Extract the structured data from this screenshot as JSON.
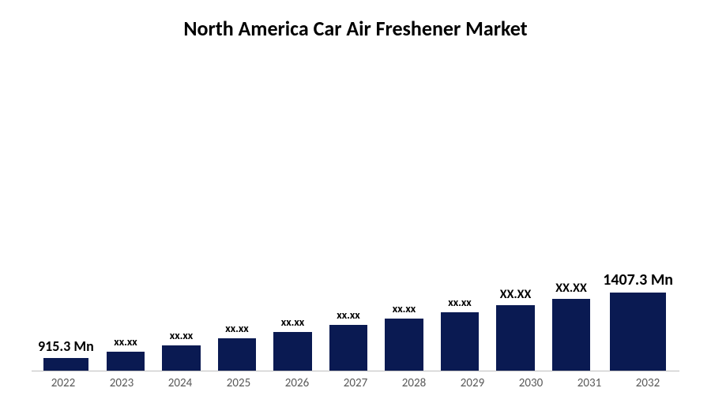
{
  "chart": {
    "type": "bar",
    "title": "North America Car Air Freshener Market",
    "title_fontsize": 26,
    "title_color": "#000000",
    "background_color": "#ffffff",
    "bar_color": "#0a1a52",
    "axis_line_color": "#bfbfbf",
    "bar_width_pct": 80,
    "categories": [
      "2022",
      "2023",
      "2024",
      "2025",
      "2026",
      "2027",
      "2028",
      "2029",
      "2030",
      "2031",
      "2032"
    ],
    "values": [
      915.3,
      960,
      1010,
      1060,
      1110,
      1160,
      1210,
      1260,
      1310,
      1360,
      1407.3
    ],
    "value_labels": [
      "915.3 Mn",
      "xx.xx",
      "xx.xx",
      "xx.xx",
      "xx.xx",
      "xx.xx",
      "xx.xx",
      "xx.xx",
      "XX.XX",
      "XX.XX",
      "1407.3 Mn"
    ],
    "label_fontsizes": [
      18,
      14,
      14,
      14,
      14,
      14,
      14,
      14,
      16,
      16,
      20
    ],
    "tick_fontsize": 15,
    "tick_color": "#595959",
    "value_label_color": "#000000",
    "ylim_basis": 3200,
    "value_offset": 820
  }
}
